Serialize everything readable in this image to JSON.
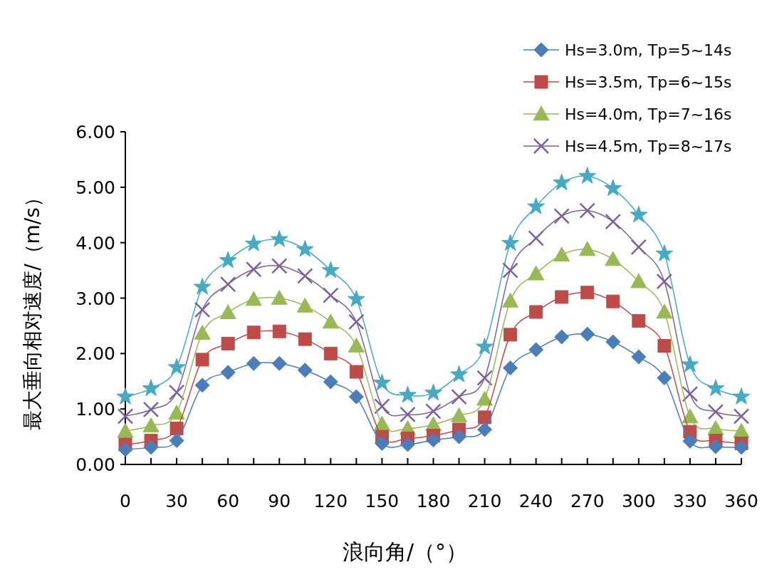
{
  "chart_data": {
    "type": "line",
    "xlabel": "浪向角/（°）",
    "ylabel": "最大垂向相对速度/（m/s）",
    "x": [
      0,
      15,
      30,
      45,
      60,
      75,
      90,
      105,
      120,
      135,
      150,
      165,
      180,
      195,
      210,
      225,
      240,
      255,
      270,
      285,
      300,
      315,
      330,
      345,
      360
    ],
    "xlim": [
      0,
      360
    ],
    "xticks": [
      0,
      {
        "value": 15,
        "label": null
      },
      30,
      {
        "value": 45,
        "label": null
      },
      60,
      {
        "value": 75,
        "label": null
      },
      90,
      {
        "value": 105,
        "label": null
      },
      120,
      {
        "value": 135,
        "label": null
      },
      150,
      {
        "value": 165,
        "label": null
      },
      180,
      {
        "value": 195,
        "label": null
      },
      210,
      {
        "value": 225,
        "label": null
      },
      240,
      {
        "value": 255,
        "label": null
      },
      270,
      {
        "value": 285,
        "label": null
      },
      300,
      {
        "value": 315,
        "label": null
      },
      330,
      {
        "value": 345,
        "label": null
      },
      360
    ],
    "ylim": [
      0,
      6
    ],
    "yticks": [
      {
        "value": 0,
        "label": "0.00"
      },
      {
        "value": 1,
        "label": "1.00"
      },
      {
        "value": 2,
        "label": "2.00"
      },
      {
        "value": 3,
        "label": "3.00"
      },
      {
        "value": 4,
        "label": "4.00"
      },
      {
        "value": 5,
        "label": "5.00"
      },
      {
        "value": 6,
        "label": "6.00"
      }
    ],
    "grid": false,
    "legend": "top right",
    "line_style": "solid",
    "series": [
      {
        "name": "Hs=3.0m, Tp=5~14s",
        "color": "#4a7ebb",
        "marker": "diamond",
        "values": [
          0.27,
          0.31,
          0.43,
          1.43,
          1.66,
          1.82,
          1.82,
          1.7,
          1.49,
          1.22,
          0.38,
          0.36,
          0.44,
          0.5,
          0.63,
          1.74,
          2.07,
          2.3,
          2.35,
          2.21,
          1.94,
          1.56,
          0.42,
          0.32,
          0.31
        ]
      },
      {
        "name": "Hs=3.5m, Tp=6~15s",
        "color": "#be4b48",
        "marker": "square",
        "values": [
          0.36,
          0.43,
          0.65,
          1.89,
          2.18,
          2.38,
          2.4,
          2.26,
          2.0,
          1.67,
          0.5,
          0.47,
          0.52,
          0.63,
          0.85,
          2.34,
          2.75,
          3.02,
          3.1,
          2.94,
          2.59,
          2.14,
          0.59,
          0.43,
          0.38
        ]
      },
      {
        "name": "Hs=4.0m, Tp=7~16s",
        "color": "#98b954",
        "marker": "triangle",
        "values": [
          0.6,
          0.7,
          0.93,
          2.37,
          2.74,
          2.98,
          3.0,
          2.86,
          2.57,
          2.14,
          0.73,
          0.65,
          0.72,
          0.88,
          1.18,
          2.95,
          3.44,
          3.78,
          3.88,
          3.7,
          3.3,
          2.75,
          0.86,
          0.65,
          0.6
        ]
      },
      {
        "name": "Hs=4.5m, Tp=8~17s",
        "color": "#7d60a0",
        "marker": "cross",
        "values": [
          0.87,
          0.99,
          1.3,
          2.79,
          3.25,
          3.52,
          3.58,
          3.4,
          3.05,
          2.57,
          1.05,
          0.9,
          0.96,
          1.22,
          1.56,
          3.5,
          4.08,
          4.48,
          4.58,
          4.38,
          3.92,
          3.3,
          1.27,
          0.95,
          0.87
        ]
      },
      {
        "color": "#46aac5",
        "marker": "star",
        "values": [
          1.22,
          1.37,
          1.75,
          3.2,
          3.68,
          3.98,
          4.06,
          3.88,
          3.5,
          2.98,
          1.47,
          1.25,
          1.29,
          1.62,
          2.12,
          3.99,
          4.65,
          5.08,
          5.2,
          4.98,
          4.5,
          3.8,
          1.8,
          1.37,
          1.22
        ]
      }
    ]
  }
}
